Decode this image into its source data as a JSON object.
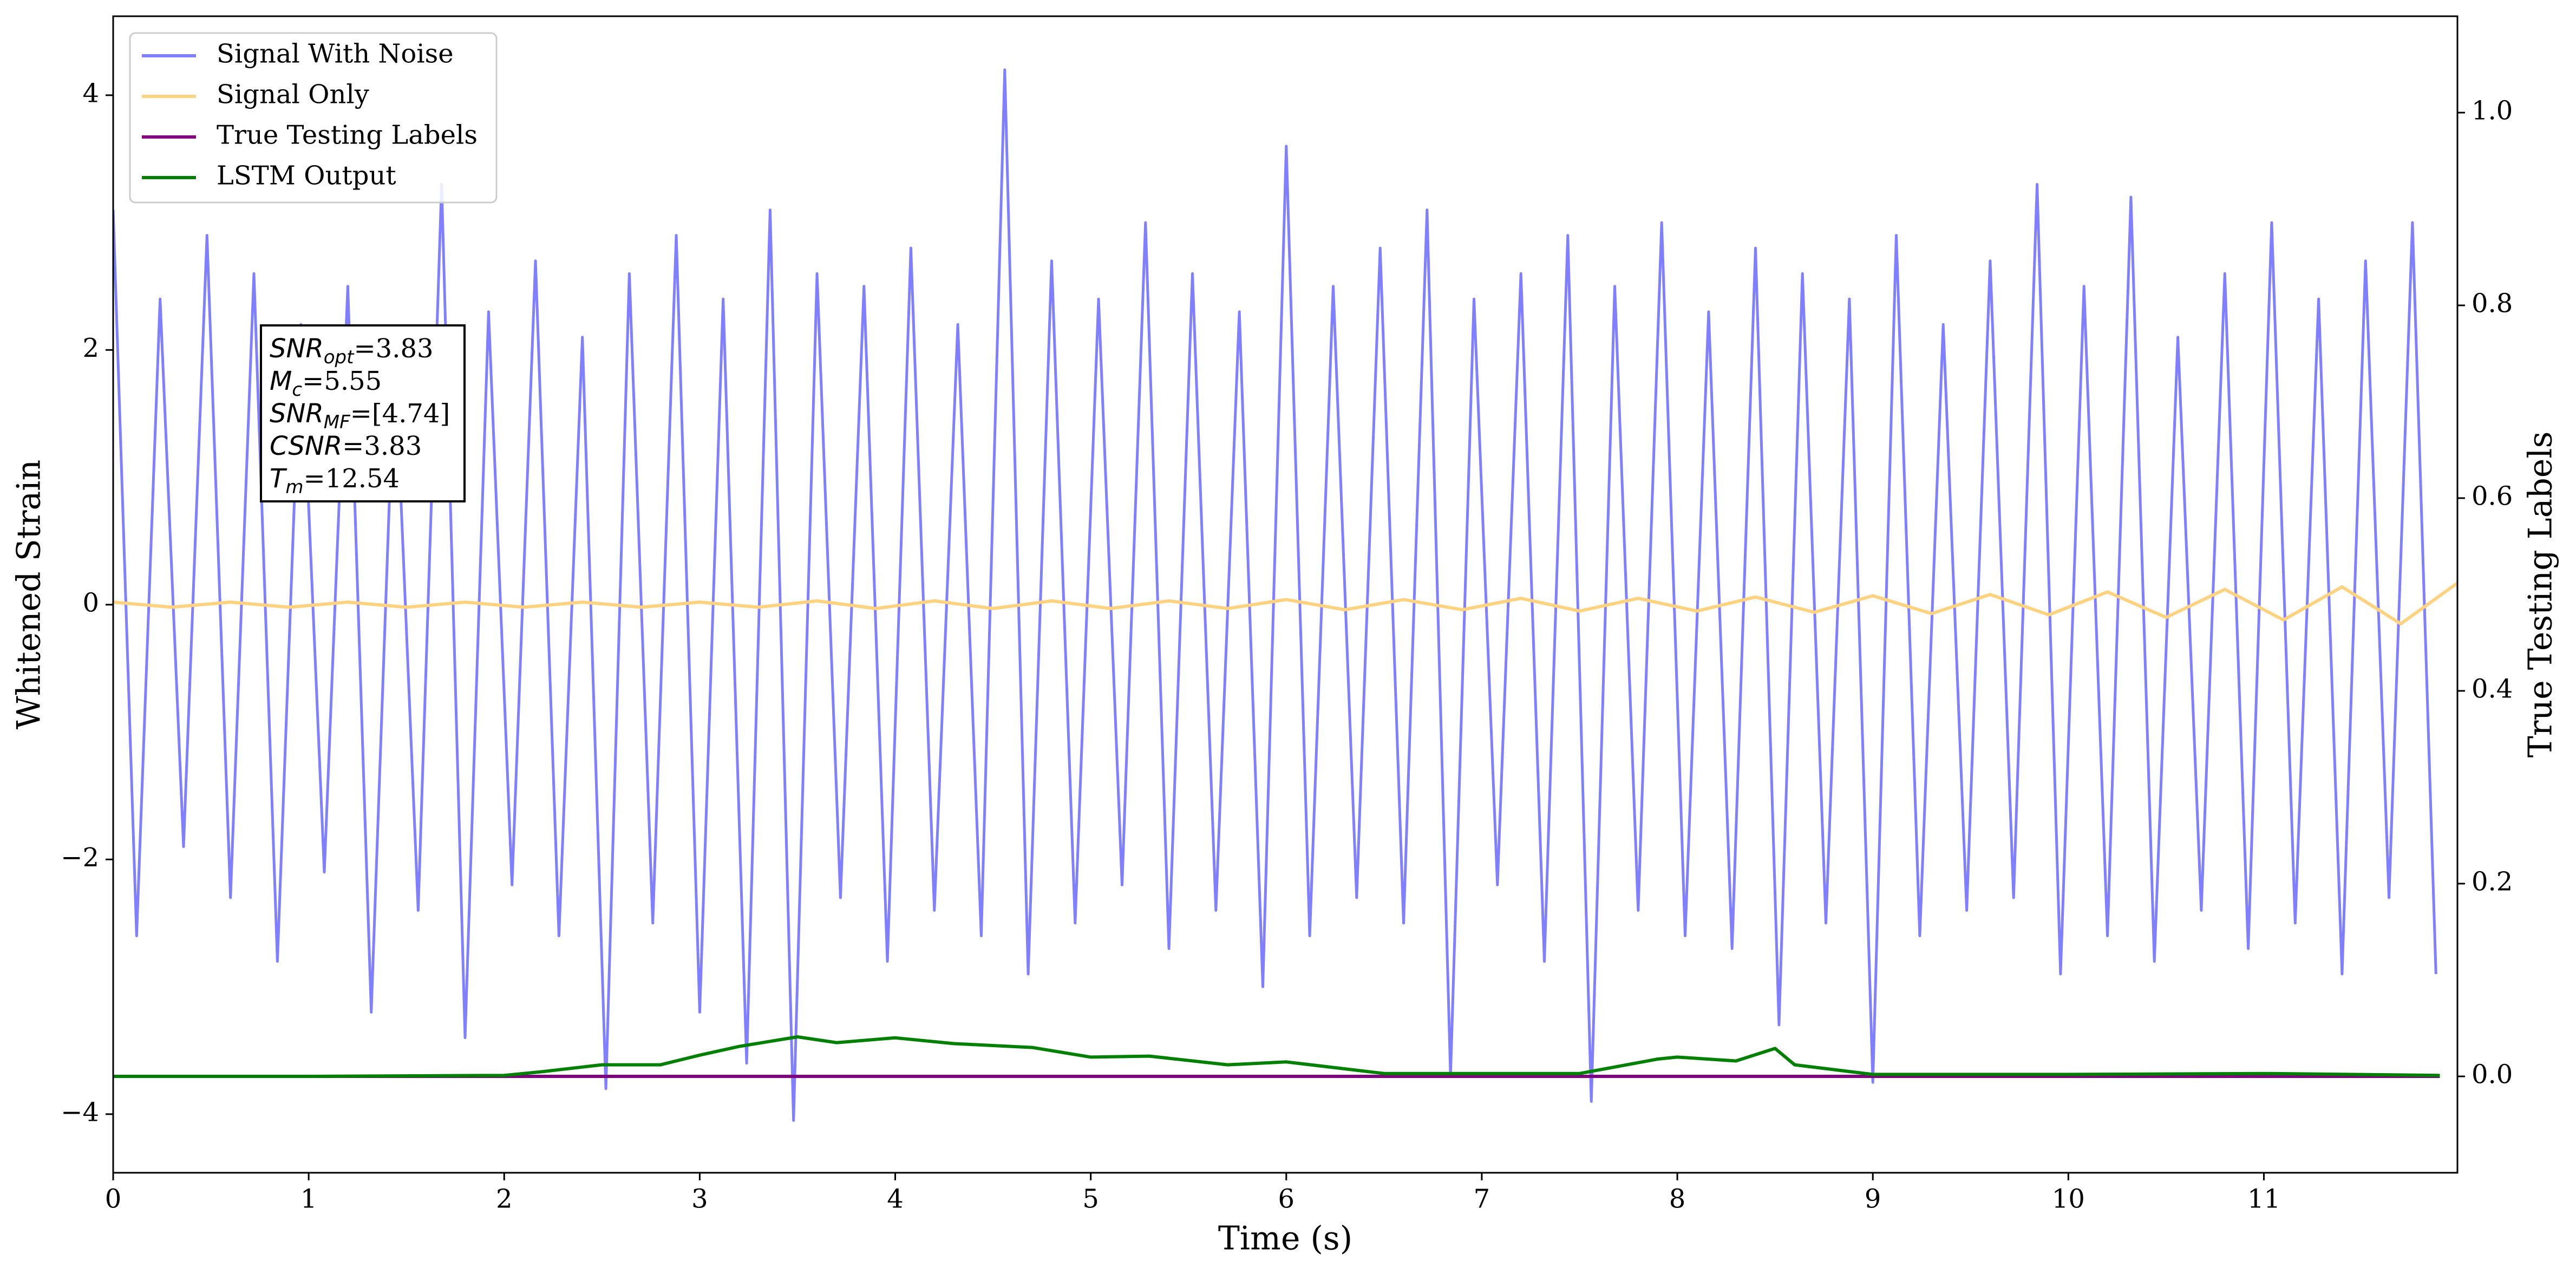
{
  "chart_data": {
    "type": "line",
    "xlabel": "Time (s)",
    "ylabel": "Whitened Strain",
    "y2label": "True Testing Labels",
    "xlim": [
      0,
      11.99
    ],
    "xticks": [
      0,
      1,
      2,
      3,
      4,
      5,
      6,
      7,
      8,
      9,
      10,
      11
    ],
    "ylim": [
      -4.46,
      4.62
    ],
    "yticks": [
      {
        "value": -4,
        "label": "−4"
      },
      {
        "value": -2,
        "label": "−2"
      },
      0,
      2,
      4
    ],
    "y2lim": [
      -0.1,
      1.1
    ],
    "y2ticks": [
      {
        "value": 0,
        "label": "0.0"
      },
      0.2,
      0.4,
      0.6,
      0.8,
      {
        "value": 1,
        "label": "1.0"
      }
    ],
    "legend": "upper left",
    "annotation": [
      {
        "base": "SNR",
        "sub": "opt",
        "text": "=3.83"
      },
      {
        "base": "M",
        "sub": "c",
        "text": "=5.55"
      },
      {
        "base": "SNR",
        "sub": "MF",
        "text": "=[4.74]"
      },
      {
        "base": "CSNR",
        "text": "=3.83"
      },
      {
        "base": "T",
        "sub": "m",
        "text": "=12.54"
      }
    ],
    "series": [
      {
        "name": "Signal With Noise",
        "color": "#7f7fff",
        "x": [
          0,
          0.12,
          0.24,
          0.36,
          0.48,
          0.6,
          0.72,
          0.84,
          0.96,
          1.08,
          1.2,
          1.32,
          1.44,
          1.56,
          1.68,
          1.8,
          1.92,
          2.04,
          2.16,
          2.28,
          2.4,
          2.52,
          2.64,
          2.76,
          2.88,
          3,
          3.12,
          3.24,
          3.36,
          3.48,
          3.6,
          3.72,
          3.84,
          3.96,
          4.08,
          4.2,
          4.32,
          4.44,
          4.56,
          4.68,
          4.8,
          4.92,
          5.04,
          5.16,
          5.28,
          5.4,
          5.52,
          5.64,
          5.76,
          5.88,
          6,
          6.12,
          6.24,
          6.36,
          6.48,
          6.6,
          6.72,
          6.84,
          6.96,
          7.08,
          7.2,
          7.32,
          7.44,
          7.56,
          7.68,
          7.8,
          7.92,
          8.04,
          8.16,
          8.28,
          8.4,
          8.52,
          8.64,
          8.76,
          8.88,
          9,
          9.12,
          9.24,
          9.36,
          9.48,
          9.6,
          9.72,
          9.84,
          9.96,
          10.08,
          10.2,
          10.32,
          10.44,
          10.56,
          10.68,
          10.8,
          10.92,
          11.04,
          11.16,
          11.28,
          11.4,
          11.52,
          11.64,
          11.76,
          11.88
        ],
        "values": [
          3.1,
          -2.6,
          2.4,
          -1.9,
          2.9,
          -2.3,
          2.6,
          -2.8,
          2.2,
          -2.1,
          2.5,
          -3.2,
          2.0,
          -2.4,
          3.3,
          -3.4,
          2.3,
          -2.2,
          2.7,
          -2.6,
          2.1,
          -3.8,
          2.6,
          -2.5,
          2.9,
          -3.2,
          2.4,
          -3.6,
          3.1,
          -4.05,
          2.6,
          -2.3,
          2.5,
          -2.8,
          2.8,
          -2.4,
          2.2,
          -2.6,
          4.2,
          -2.9,
          2.7,
          -2.5,
          2.4,
          -2.2,
          3.0,
          -2.7,
          2.6,
          -2.4,
          2.3,
          -3.0,
          3.6,
          -2.6,
          2.5,
          -2.3,
          2.8,
          -2.5,
          3.1,
          -3.7,
          2.4,
          -2.2,
          2.6,
          -2.8,
          2.9,
          -3.9,
          2.5,
          -2.4,
          3.0,
          -2.6,
          2.3,
          -2.7,
          2.8,
          -3.3,
          2.6,
          -2.5,
          2.4,
          -3.75,
          2.9,
          -2.6,
          2.2,
          -2.4,
          2.7,
          -2.3,
          3.3,
          -2.9,
          2.5,
          -2.6,
          3.2,
          -2.8,
          2.1,
          -2.4,
          2.6,
          -2.7,
          3.0,
          -2.5,
          2.4,
          -2.9,
          2.7,
          -2.3,
          3.0,
          -2.9
        ]
      },
      {
        "name": "Signal Only",
        "color": "#ffd27f",
        "x": [
          0,
          0.3,
          0.6,
          0.9,
          1.2,
          1.5,
          1.8,
          2.1,
          2.4,
          2.7,
          3,
          3.3,
          3.6,
          3.9,
          4.2,
          4.5,
          4.8,
          5.1,
          5.4,
          5.7,
          6,
          6.3,
          6.6,
          6.9,
          7.2,
          7.5,
          7.8,
          8.1,
          8.4,
          8.7,
          9,
          9.3,
          9.6,
          9.9,
          10.2,
          10.5,
          10.8,
          11.1,
          11.4,
          11.7,
          11.99
        ],
        "values": [
          0.02,
          -0.02,
          0.02,
          -0.02,
          0.02,
          -0.02,
          0.02,
          -0.02,
          0.02,
          -0.02,
          0.02,
          -0.02,
          0.03,
          -0.03,
          0.03,
          -0.03,
          0.03,
          -0.03,
          0.03,
          -0.03,
          0.04,
          -0.04,
          0.04,
          -0.04,
          0.05,
          -0.05,
          0.05,
          -0.05,
          0.06,
          -0.06,
          0.07,
          -0.07,
          0.08,
          -0.08,
          0.1,
          -0.1,
          0.12,
          -0.12,
          0.14,
          -0.15,
          0.17
        ]
      },
      {
        "name": "True Testing Labels",
        "color": "#800080",
        "axis": "y2",
        "x": [
          0,
          11.9
        ],
        "values": [
          0,
          0
        ]
      },
      {
        "name": "LSTM Output",
        "color": "#008000",
        "axis": "y2",
        "x": [
          0,
          1,
          2,
          2.2,
          2.5,
          2.8,
          3,
          3.2,
          3.5,
          3.7,
          4,
          4.3,
          4.7,
          5,
          5.3,
          5.7,
          6,
          6.5,
          7,
          7.5,
          7.9,
          8,
          8.3,
          8.5,
          8.6,
          9,
          10,
          11,
          11.9
        ],
        "values": [
          0,
          0,
          0.001,
          0.005,
          0.012,
          0.012,
          0.022,
          0.031,
          0.041,
          0.035,
          0.04,
          0.034,
          0.03,
          0.02,
          0.021,
          0.012,
          0.015,
          0.003,
          0.003,
          0.003,
          0.018,
          0.02,
          0.016,
          0.029,
          0.012,
          0.002,
          0.002,
          0.003,
          0.001
        ]
      }
    ]
  }
}
